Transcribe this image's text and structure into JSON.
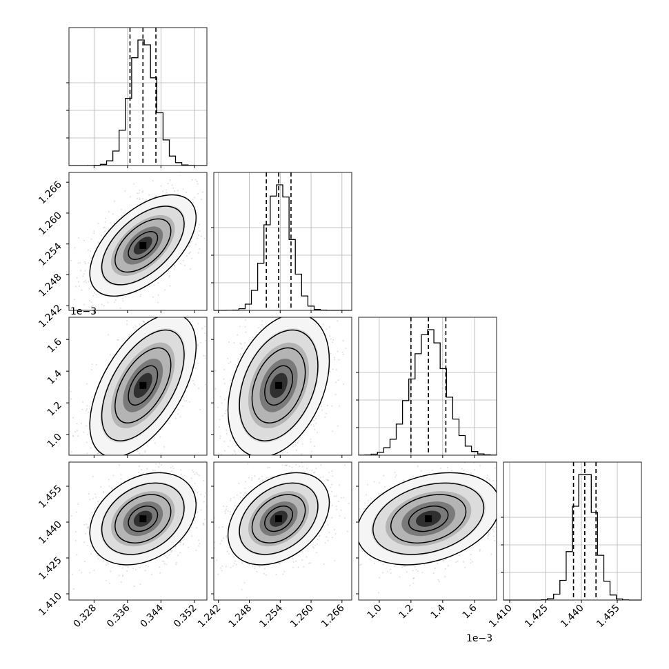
{
  "chart_data": {
    "type": "scatter",
    "variables": [
      {
        "range": [
          0.322,
          0.355
        ],
        "ticks": [
          0.328,
          0.336,
          0.344,
          0.352
        ],
        "tick_labels": [
          "0.328",
          "0.336",
          "0.344",
          "0.352"
        ],
        "mean": 0.3397,
        "std": 0.0031,
        "quantiles": [
          0.3366,
          0.3397,
          0.3428
        ],
        "hist_max_frac": 0.118
      },
      {
        "range": [
          1.2411,
          1.2679
        ],
        "ticks": [
          1.242,
          1.248,
          1.254,
          1.26,
          1.266
        ],
        "tick_labels": [
          "1.242",
          "1.248",
          "1.254",
          "1.260",
          "1.266"
        ],
        "mean": 1.2537,
        "std": 0.0024,
        "quantiles": [
          1.2513,
          1.2537,
          1.2561
        ],
        "hist_max_frac": 0.118
      },
      {
        "range": [
          0.00087,
          0.00174
        ],
        "ticks": [
          0.001,
          0.0012,
          0.0014,
          0.0016
        ],
        "tick_labels": [
          "1.0",
          "1.2",
          "1.4",
          "1.6"
        ],
        "offset_text": "1e−3",
        "mean": 0.00131,
        "std": 0.00011,
        "quantiles": [
          0.0012,
          0.00131,
          0.00142
        ],
        "hist_max_frac": 0.118
      },
      {
        "range": [
          1.4074,
          1.4651
        ],
        "ticks": [
          1.41,
          1.425,
          1.44,
          1.455
        ],
        "tick_labels": [
          "1.410",
          "1.425",
          "1.440",
          "1.455"
        ],
        "mean": 1.4414,
        "std": 0.0047,
        "quantiles": [
          1.4367,
          1.4414,
          1.4461
        ],
        "hist_max_frac": 0.118
      }
    ],
    "correlations": [
      {
        "i": 1,
        "j": 0,
        "rho": 0.55
      },
      {
        "i": 2,
        "j": 0,
        "rho": 0.55
      },
      {
        "i": 2,
        "j": 1,
        "rho": 0.35
      },
      {
        "i": 3,
        "j": 0,
        "rho": 0.3
      },
      {
        "i": 3,
        "j": 1,
        "rho": 0.35
      },
      {
        "i": 3,
        "j": 2,
        "rho": 0.3
      }
    ],
    "colors": {
      "points": "#7f7f7f",
      "lines": "#000000",
      "grid": "#b0b0b0"
    }
  }
}
